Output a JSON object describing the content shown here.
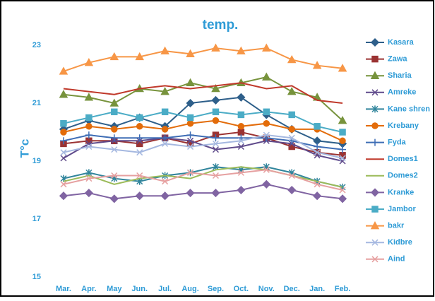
{
  "chart_data": {
    "type": "line",
    "title": "temp.",
    "y_label": "T°c",
    "categories": [
      "Mar.",
      "Apr.",
      "May",
      "Jun.",
      "Jul.",
      "Aug.",
      "Sep.",
      "Oct.",
      "Nov.",
      "Dec.",
      "Jan.",
      "Feb."
    ],
    "ylim": [
      15,
      24
    ],
    "yticks": [
      15,
      17,
      19,
      21,
      23
    ],
    "grid": false,
    "legend": "right",
    "series": [
      {
        "name": "Kasara",
        "color": "#2e5f8a",
        "marker": "diamond",
        "values": [
          20.1,
          20.4,
          20.2,
          20.5,
          20.2,
          21.0,
          21.1,
          21.2,
          20.6,
          20.1,
          19.7,
          19.6
        ]
      },
      {
        "name": "Zawa",
        "color": "#9b3333",
        "marker": "square",
        "values": [
          19.6,
          19.7,
          19.7,
          19.6,
          19.8,
          19.6,
          19.9,
          20.0,
          19.8,
          19.5,
          19.3,
          19.2
        ]
      },
      {
        "name": "Sharia",
        "color": "#77933c",
        "marker": "triangle",
        "values": [
          21.3,
          21.2,
          21.0,
          21.5,
          21.4,
          21.7,
          21.5,
          21.7,
          21.9,
          21.4,
          21.2,
          20.4
        ]
      },
      {
        "name": "Amreke",
        "color": "#5f4a8b",
        "marker": "x",
        "values": [
          19.1,
          19.6,
          19.7,
          19.7,
          19.8,
          19.7,
          19.4,
          19.5,
          19.7,
          19.6,
          19.2,
          19.0
        ]
      },
      {
        "name": "Kane shren",
        "color": "#31859c",
        "marker": "star",
        "values": [
          18.4,
          18.6,
          18.4,
          18.3,
          18.5,
          18.6,
          18.8,
          18.7,
          18.8,
          18.6,
          18.3,
          18.1
        ]
      },
      {
        "name": "Krebany",
        "color": "#e36c0a",
        "marker": "circle",
        "values": [
          20.0,
          20.2,
          20.1,
          20.2,
          20.1,
          20.3,
          20.4,
          20.2,
          20.3,
          20.1,
          20.1,
          19.7
        ]
      },
      {
        "name": "Fyda",
        "color": "#3e6db5",
        "marker": "plus",
        "values": [
          19.7,
          19.9,
          19.8,
          19.8,
          19.8,
          19.9,
          19.8,
          19.8,
          19.8,
          19.7,
          19.5,
          19.4
        ]
      },
      {
        "name": "Domes1",
        "color": "#c0392b",
        "marker": "none",
        "values": [
          21.5,
          21.4,
          21.3,
          21.5,
          21.6,
          21.5,
          21.6,
          21.7,
          21.5,
          21.6,
          21.1,
          21.0
        ]
      },
      {
        "name": "Domes2",
        "color": "#9bbb59",
        "marker": "none",
        "values": [
          18.3,
          18.5,
          18.2,
          18.4,
          18.5,
          18.4,
          18.7,
          18.8,
          18.7,
          18.5,
          18.3,
          18.1
        ]
      },
      {
        "name": "Kranke",
        "color": "#8064a2",
        "marker": "diamond",
        "values": [
          17.8,
          17.9,
          17.7,
          17.8,
          17.8,
          17.9,
          17.9,
          18.0,
          18.2,
          18.0,
          17.8,
          17.7
        ]
      },
      {
        "name": "Jambor",
        "color": "#4bacc6",
        "marker": "square",
        "values": [
          20.3,
          20.5,
          20.7,
          20.5,
          20.7,
          20.5,
          20.7,
          20.6,
          20.7,
          20.6,
          20.2,
          20.0
        ]
      },
      {
        "name": "bakr",
        "color": "#f79646",
        "marker": "triangle",
        "values": [
          22.1,
          22.4,
          22.6,
          22.6,
          22.8,
          22.7,
          22.9,
          22.8,
          22.9,
          22.5,
          22.3,
          22.2
        ]
      },
      {
        "name": "Kidbre",
        "color": "#a5b8e0",
        "marker": "x",
        "values": [
          19.3,
          19.5,
          19.4,
          19.3,
          19.6,
          19.5,
          19.6,
          19.7,
          19.9,
          19.8,
          19.3,
          19.1
        ]
      },
      {
        "name": "Aind",
        "color": "#e6a0a0",
        "marker": "x",
        "values": [
          18.2,
          18.4,
          18.5,
          18.5,
          18.3,
          18.6,
          18.5,
          18.6,
          18.7,
          18.5,
          18.2,
          18.0
        ]
      }
    ]
  }
}
